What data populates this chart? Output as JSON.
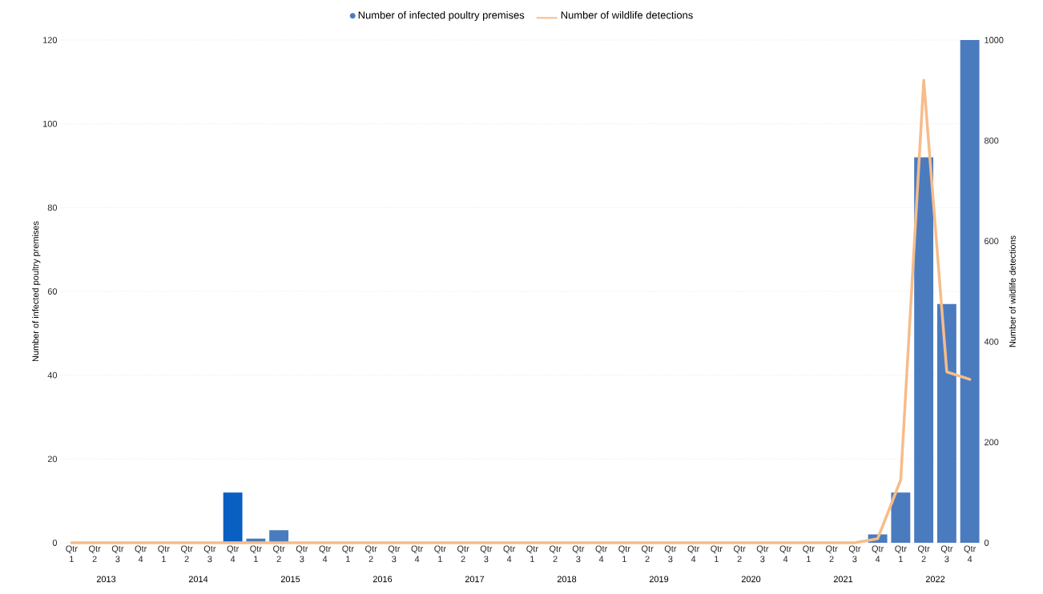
{
  "chart_data": {
    "type": "bar",
    "ylabel": "Number of infected poultry premises",
    "y2label": "Number of wildlife detections",
    "categories": [
      "Qtr 1",
      "Qtr 2",
      "Qtr 3",
      "Qtr 4",
      "Qtr 1",
      "Qtr 2",
      "Qtr 3",
      "Qtr 4",
      "Qtr 1",
      "Qtr 2",
      "Qtr 3",
      "Qtr 4",
      "Qtr 1",
      "Qtr 2",
      "Qtr 3",
      "Qtr 4",
      "Qtr 1",
      "Qtr 2",
      "Qtr 3",
      "Qtr 4",
      "Qtr 1",
      "Qtr 2",
      "Qtr 3",
      "Qtr 4",
      "Qtr 1",
      "Qtr 2",
      "Qtr 3",
      "Qtr 4",
      "Qtr 1",
      "Qtr 2",
      "Qtr 3",
      "Qtr 4",
      "Qtr 1",
      "Qtr 2",
      "Qtr 3",
      "Qtr 4",
      "Qtr 1",
      "Qtr 2",
      "Qtr 3",
      "Qtr 4"
    ],
    "annotations": [
      "2013",
      "2014",
      "2015",
      "2016",
      "2017",
      "2018",
      "2019",
      "2020",
      "2021",
      "2022"
    ],
    "series": [
      {
        "name": "Number of infected poultry premises",
        "color": "#4a7bbf",
        "colors": [
          "#4a7bbf",
          "#4a7bbf",
          "#4a7bbf",
          "#4a7bbf",
          "#4a7bbf",
          "#4a7bbf",
          "#4a7bbf",
          "#0a5fc2",
          "#4a7bbf",
          "#4a7bbf",
          "#4a7bbf",
          "#4a7bbf",
          "#4a7bbf",
          "#4a7bbf",
          "#4a7bbf",
          "#4a7bbf",
          "#4a7bbf",
          "#4a7bbf",
          "#4a7bbf",
          "#4a7bbf",
          "#4a7bbf",
          "#4a7bbf",
          "#4a7bbf",
          "#4a7bbf",
          "#4a7bbf",
          "#4a7bbf",
          "#4a7bbf",
          "#4a7bbf",
          "#4a7bbf",
          "#4a7bbf",
          "#4a7bbf",
          "#4a7bbf",
          "#4a7bbf",
          "#4a7bbf",
          "#4a7bbf",
          "#4a7bbf",
          "#4a7bbf",
          "#4a7bbf",
          "#4a7bbf",
          "#4a7bbf"
        ],
        "values": [
          0,
          0,
          0,
          0,
          0,
          0,
          0,
          12,
          1,
          3,
          0,
          0,
          0,
          0,
          0,
          0,
          0,
          0,
          0,
          0,
          0,
          0,
          0,
          0,
          0,
          0,
          0,
          0,
          0,
          0,
          0,
          0,
          0,
          0,
          0,
          2,
          12,
          92,
          57,
          120
        ]
      },
      {
        "name": "Number of wildlife detections",
        "type": "line",
        "axis": "y2",
        "color": "#f7bc8a",
        "values": [
          0,
          0,
          0,
          0,
          0,
          0,
          0,
          0,
          0,
          0,
          0,
          0,
          0,
          0,
          0,
          0,
          0,
          0,
          0,
          0,
          0,
          0,
          0,
          0,
          0,
          0,
          0,
          0,
          0,
          0,
          0,
          0,
          0,
          0,
          0,
          8,
          125,
          920,
          340,
          325
        ]
      }
    ],
    "ylim": [
      0,
      120
    ],
    "yticks": [
      0,
      20,
      40,
      60,
      80,
      100,
      120
    ],
    "y2lim": [
      0,
      1000
    ],
    "y2ticks": [
      0,
      200,
      400,
      600,
      800,
      1000
    ],
    "grid": "y",
    "legend": "top",
    "line_style": "solid"
  }
}
